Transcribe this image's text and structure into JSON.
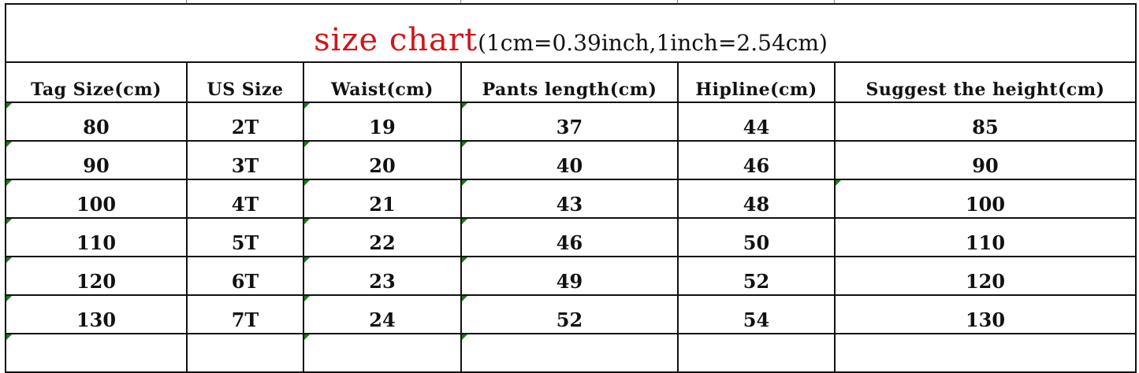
{
  "title": {
    "main": "size chart",
    "note": "(1cm=0.39inch,1inch=2.54cm)"
  },
  "columns": [
    "Tag Size(cm)",
    "US Size",
    "Waist(cm)",
    "Pants length(cm)",
    "Hipline(cm)",
    "Suggest the height(cm)"
  ],
  "rows": [
    [
      "80",
      "2T",
      "19",
      "37",
      "44",
      "85"
    ],
    [
      "90",
      "3T",
      "20",
      "40",
      "46",
      "90"
    ],
    [
      "100",
      "4T",
      "21",
      "43",
      "48",
      "100"
    ],
    [
      "110",
      "5T",
      "22",
      "46",
      "50",
      "110"
    ],
    [
      "120",
      "6T",
      "23",
      "49",
      "52",
      "120"
    ],
    [
      "130",
      "7T",
      "24",
      "52",
      "54",
      "130"
    ]
  ],
  "colors": {
    "title_accent": "#d0161a",
    "cell_marker": "#1f7a1f"
  }
}
